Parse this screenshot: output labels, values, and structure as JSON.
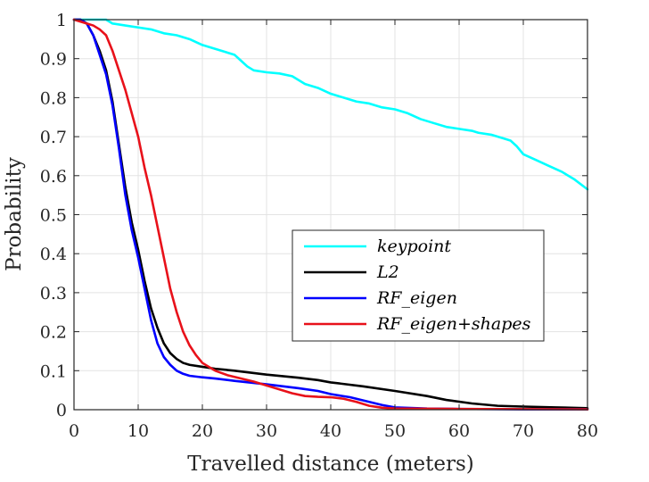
{
  "chart_data": {
    "type": "line",
    "title": "",
    "xlabel": "Travelled distance (meters)",
    "ylabel": "Probability",
    "xlim": [
      0,
      80
    ],
    "ylim": [
      0,
      1
    ],
    "xticks": [
      0,
      10,
      20,
      30,
      40,
      50,
      60,
      70,
      80
    ],
    "yticks": [
      0,
      0.1,
      0.2,
      0.3,
      0.4,
      0.5,
      0.6,
      0.7,
      0.8,
      0.9,
      1
    ],
    "grid": true,
    "legend_position": "center-right",
    "series": [
      {
        "name": "keypoint",
        "color": "#00ffff",
        "points": [
          [
            0,
            1
          ],
          [
            5,
            1
          ],
          [
            6,
            0.99
          ],
          [
            8,
            0.985
          ],
          [
            10,
            0.98
          ],
          [
            12,
            0.975
          ],
          [
            14,
            0.965
          ],
          [
            16,
            0.96
          ],
          [
            18,
            0.95
          ],
          [
            20,
            0.935
          ],
          [
            22,
            0.925
          ],
          [
            25,
            0.91
          ],
          [
            26,
            0.895
          ],
          [
            27,
            0.88
          ],
          [
            28,
            0.87
          ],
          [
            30,
            0.865
          ],
          [
            32,
            0.862
          ],
          [
            34,
            0.855
          ],
          [
            35,
            0.845
          ],
          [
            36,
            0.835
          ],
          [
            38,
            0.825
          ],
          [
            40,
            0.81
          ],
          [
            42,
            0.8
          ],
          [
            44,
            0.79
          ],
          [
            46,
            0.785
          ],
          [
            48,
            0.775
          ],
          [
            50,
            0.77
          ],
          [
            52,
            0.76
          ],
          [
            54,
            0.745
          ],
          [
            56,
            0.735
          ],
          [
            58,
            0.725
          ],
          [
            60,
            0.72
          ],
          [
            62,
            0.715
          ],
          [
            63,
            0.71
          ],
          [
            65,
            0.705
          ],
          [
            67,
            0.695
          ],
          [
            68,
            0.69
          ],
          [
            69,
            0.675
          ],
          [
            70,
            0.655
          ],
          [
            72,
            0.64
          ],
          [
            74,
            0.625
          ],
          [
            76,
            0.61
          ],
          [
            78,
            0.59
          ],
          [
            80,
            0.565
          ]
        ]
      },
      {
        "name": "L2",
        "color": "#000000",
        "points": [
          [
            0,
            1
          ],
          [
            1,
            1
          ],
          [
            2,
            0.99
          ],
          [
            3,
            0.96
          ],
          [
            4,
            0.92
          ],
          [
            5,
            0.87
          ],
          [
            6,
            0.79
          ],
          [
            7,
            0.68
          ],
          [
            8,
            0.57
          ],
          [
            9,
            0.48
          ],
          [
            10,
            0.41
          ],
          [
            11,
            0.33
          ],
          [
            12,
            0.26
          ],
          [
            13,
            0.21
          ],
          [
            14,
            0.17
          ],
          [
            15,
            0.145
          ],
          [
            16,
            0.13
          ],
          [
            17,
            0.12
          ],
          [
            18,
            0.115
          ],
          [
            20,
            0.11
          ],
          [
            22,
            0.105
          ],
          [
            25,
            0.1
          ],
          [
            30,
            0.09
          ],
          [
            35,
            0.082
          ],
          [
            38,
            0.076
          ],
          [
            40,
            0.07
          ],
          [
            45,
            0.06
          ],
          [
            50,
            0.048
          ],
          [
            55,
            0.035
          ],
          [
            58,
            0.025
          ],
          [
            62,
            0.016
          ],
          [
            66,
            0.01
          ],
          [
            70,
            0.008
          ],
          [
            75,
            0.006
          ],
          [
            80,
            0.004
          ]
        ]
      },
      {
        "name": "RF_eigen",
        "color": "#0000ff",
        "points": [
          [
            0,
            1
          ],
          [
            1,
            1
          ],
          [
            2,
            0.99
          ],
          [
            3,
            0.96
          ],
          [
            4,
            0.91
          ],
          [
            5,
            0.86
          ],
          [
            6,
            0.78
          ],
          [
            7,
            0.67
          ],
          [
            8,
            0.55
          ],
          [
            9,
            0.46
          ],
          [
            10,
            0.39
          ],
          [
            11,
            0.31
          ],
          [
            12,
            0.23
          ],
          [
            13,
            0.17
          ],
          [
            14,
            0.135
          ],
          [
            15,
            0.115
          ],
          [
            16,
            0.1
          ],
          [
            17,
            0.092
          ],
          [
            18,
            0.087
          ],
          [
            20,
            0.083
          ],
          [
            22,
            0.08
          ],
          [
            25,
            0.074
          ],
          [
            30,
            0.065
          ],
          [
            35,
            0.055
          ],
          [
            38,
            0.048
          ],
          [
            40,
            0.04
          ],
          [
            43,
            0.032
          ],
          [
            46,
            0.02
          ],
          [
            48,
            0.012
          ],
          [
            50,
            0.006
          ],
          [
            55,
            0.003
          ],
          [
            60,
            0.002
          ],
          [
            70,
            0.001
          ],
          [
            80,
            0.001
          ]
        ]
      },
      {
        "name": "RF_eigen+shapes",
        "color": "#e8111a",
        "points": [
          [
            0,
            1
          ],
          [
            2,
            0.99
          ],
          [
            3,
            0.985
          ],
          [
            4,
            0.975
          ],
          [
            5,
            0.96
          ],
          [
            6,
            0.92
          ],
          [
            7,
            0.87
          ],
          [
            8,
            0.82
          ],
          [
            9,
            0.76
          ],
          [
            10,
            0.7
          ],
          [
            11,
            0.62
          ],
          [
            12,
            0.55
          ],
          [
            13,
            0.47
          ],
          [
            14,
            0.39
          ],
          [
            15,
            0.31
          ],
          [
            16,
            0.25
          ],
          [
            17,
            0.2
          ],
          [
            18,
            0.165
          ],
          [
            19,
            0.14
          ],
          [
            20,
            0.12
          ],
          [
            21,
            0.11
          ],
          [
            22,
            0.1
          ],
          [
            24,
            0.088
          ],
          [
            26,
            0.08
          ],
          [
            28,
            0.072
          ],
          [
            30,
            0.062
          ],
          [
            32,
            0.052
          ],
          [
            34,
            0.042
          ],
          [
            36,
            0.035
          ],
          [
            38,
            0.033
          ],
          [
            40,
            0.032
          ],
          [
            42,
            0.028
          ],
          [
            44,
            0.02
          ],
          [
            46,
            0.01
          ],
          [
            48,
            0.005
          ],
          [
            50,
            0.003
          ],
          [
            60,
            0.002
          ],
          [
            80,
            0.001
          ]
        ]
      }
    ]
  }
}
